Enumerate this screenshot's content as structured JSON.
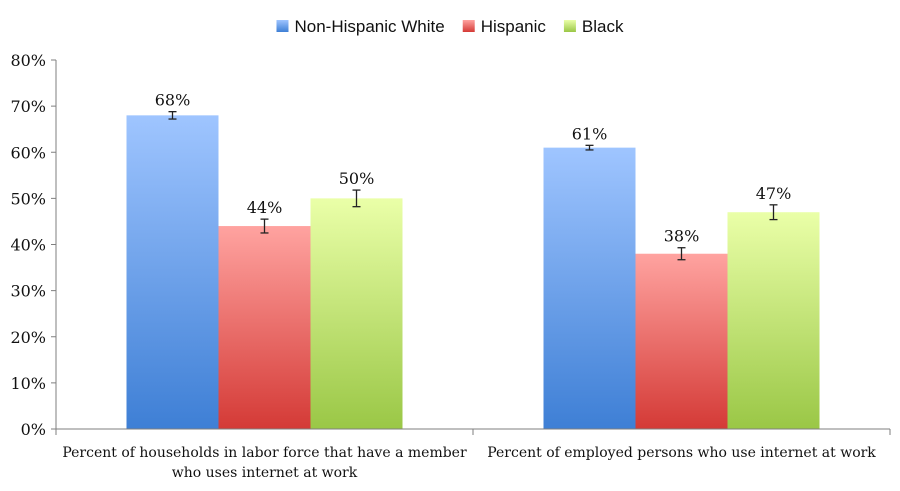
{
  "chart_data": {
    "type": "bar",
    "title": "",
    "xlabel": "",
    "ylabel": "",
    "ylim": [
      0,
      80
    ],
    "yticks": [
      0,
      10,
      20,
      30,
      40,
      50,
      60,
      70,
      80
    ],
    "ytick_labels": [
      "0%",
      "10%",
      "20%",
      "30%",
      "40%",
      "50%",
      "60%",
      "70%",
      "80%"
    ],
    "legend_position": "top-center",
    "grid": false,
    "categories": [
      [
        "Percent of  households in labor force that have a member",
        "who uses internet at work"
      ],
      [
        "Percent of  employed persons who use internet at work"
      ]
    ],
    "series": [
      {
        "name": "Non-Hispanic White",
        "colors": [
          "#9fc5ff",
          "#3e7fd5"
        ],
        "swatch": "#4f8fe0",
        "values": [
          68,
          61
        ],
        "labels": [
          "68%",
          "61%"
        ],
        "error": [
          0.8,
          0.5
        ]
      },
      {
        "name": "Hispanic",
        "colors": [
          "#ffa3a0",
          "#d43a36"
        ],
        "swatch": "#dd4c48",
        "values": [
          44,
          38
        ],
        "labels": [
          "44%",
          "38%"
        ],
        "error": [
          1.5,
          1.3
        ]
      },
      {
        "name": "Black",
        "colors": [
          "#eaffa8",
          "#9ac746"
        ],
        "swatch": "#a9d354",
        "values": [
          50,
          47
        ],
        "labels": [
          "50%",
          "47%"
        ],
        "error": [
          1.8,
          1.6
        ]
      }
    ]
  }
}
